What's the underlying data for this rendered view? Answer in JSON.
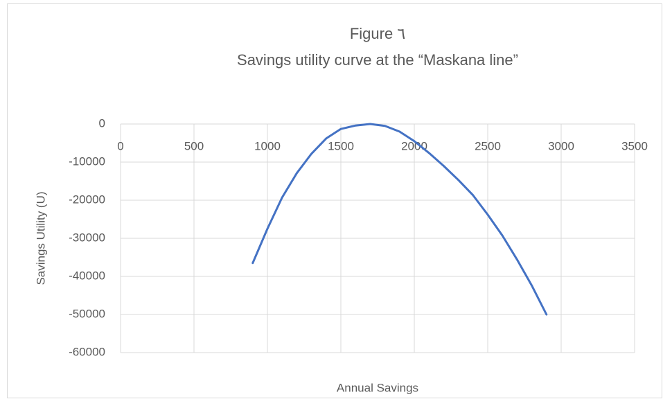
{
  "chart_data": {
    "type": "line",
    "title": "Figure ٦",
    "subtitle": "Savings utility curve at the “Maskana line”",
    "x_label": "Annual Savings",
    "y_label": "Savings Utility (U)",
    "x": [
      900,
      1000,
      1100,
      1200,
      1300,
      1400,
      1500,
      1600,
      1700,
      1800,
      1900,
      2000,
      2100,
      2200,
      2300,
      2400,
      2500,
      2600,
      2700,
      2800,
      2900
    ],
    "values": [
      -36500,
      -27500,
      -19300,
      -12900,
      -7800,
      -3800,
      -1300,
      -400,
      0,
      -500,
      -2000,
      -4500,
      -7600,
      -11000,
      -14700,
      -18700,
      -23800,
      -29300,
      -35600,
      -42400,
      -50000
    ],
    "color": "#4472c4",
    "xlim": [
      0,
      3500
    ],
    "xticks": [
      0,
      500,
      1000,
      1500,
      2000,
      2500,
      3000,
      3500
    ],
    "ylim": [
      -60000,
      0
    ],
    "yticks": [
      -60000,
      -50000,
      -40000,
      -30000,
      -20000,
      -10000,
      0
    ],
    "grid": true
  }
}
